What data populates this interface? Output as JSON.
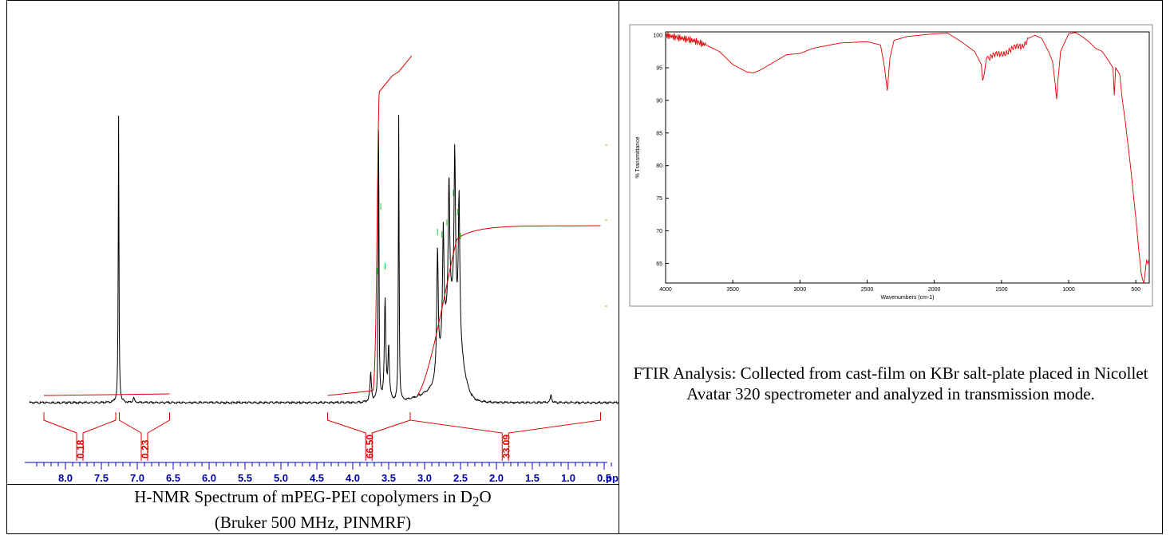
{
  "chart_data": [
    {
      "type": "line",
      "name_hint": "nmr",
      "xlabel": "ppm",
      "x_reversed": true,
      "xlim": [
        8.5,
        0.3
      ],
      "x_ticks": [
        "8.0",
        "7.5",
        "7.0",
        "6.5",
        "6.0",
        "5.5",
        "5.0",
        "4.5",
        "4.0",
        "3.5",
        "3.0",
        "2.5",
        "2.0",
        "1.5",
        "1.0",
        "0.5"
      ],
      "x_tick_values": [
        8.0,
        7.5,
        7.0,
        6.5,
        6.0,
        5.5,
        5.0,
        4.5,
        4.0,
        3.5,
        3.0,
        2.5,
        2.0,
        1.5,
        1.0,
        0.5
      ],
      "peaks": [
        {
          "ppm": 7.26,
          "height": 1.2
        },
        {
          "ppm": 7.05,
          "height": 0.02
        },
        {
          "ppm": 3.64,
          "height": 1.2
        },
        {
          "ppm": 3.36,
          "height": 1.2
        },
        {
          "ppm": 3.55,
          "height": 0.42
        },
        {
          "ppm": 3.5,
          "height": 0.22
        },
        {
          "ppm": 3.75,
          "height": 0.12
        },
        {
          "ppm": 2.82,
          "height": 0.52
        },
        {
          "ppm": 2.74,
          "height": 0.48
        },
        {
          "ppm": 2.66,
          "height": 0.56
        },
        {
          "ppm": 2.58,
          "height": 0.68
        },
        {
          "ppm": 2.52,
          "height": 0.6
        },
        {
          "ppm": 1.24,
          "height": 0.03
        }
      ],
      "integrals": [
        {
          "from": 8.3,
          "to": 7.3,
          "label": "0.18"
        },
        {
          "from": 7.25,
          "to": 6.55,
          "label": "0.23"
        },
        {
          "from": 4.35,
          "to": 3.2,
          "label": "66.50"
        },
        {
          "from": 3.2,
          "to": 0.55,
          "label": "33.09"
        }
      ],
      "caption_line1": "H-NMR Spectrum of mPEG-PEI copolymers in D",
      "caption_sub": "2",
      "caption_line1_end": "O",
      "caption_line2": "(Bruker 500 MHz, PINMRF)"
    },
    {
      "type": "line",
      "name_hint": "ftir",
      "xlabel": "Wavenumbers (cm-1)",
      "ylabel": "% Transmittance",
      "x_reversed": true,
      "xlim": [
        4000,
        400
      ],
      "ylim": [
        62,
        100.5
      ],
      "x_ticks": [
        "4000",
        "3500",
        "3000",
        "2500",
        "2000",
        "1500",
        "1000",
        "500"
      ],
      "x_tick_values": [
        4000,
        3500,
        3000,
        2500,
        2000,
        1500,
        1000,
        500
      ],
      "y_ticks": [
        "65",
        "70",
        "75",
        "80",
        "85",
        "90",
        "95",
        "100"
      ],
      "y_tick_values": [
        65,
        70,
        75,
        80,
        85,
        90,
        95,
        100
      ],
      "x": [
        4000,
        3900,
        3800,
        3700,
        3600,
        3500,
        3400,
        3350,
        3300,
        3200,
        3100,
        3000,
        2900,
        2800,
        2700,
        2500,
        2400,
        2370,
        2350,
        2330,
        2300,
        2200,
        2000,
        1900,
        1800,
        1700,
        1650,
        1640,
        1620,
        1600,
        1550,
        1500,
        1450,
        1400,
        1350,
        1300,
        1250,
        1200,
        1150,
        1120,
        1100,
        1090,
        1080,
        1060,
        1000,
        950,
        900,
        850,
        800,
        750,
        700,
        670,
        660,
        650,
        620,
        600,
        580,
        560,
        540,
        520,
        500,
        480,
        460,
        440,
        430,
        420,
        410,
        400
      ],
      "y": [
        100,
        99.6,
        99.2,
        98.5,
        97.5,
        95.5,
        94.4,
        94.2,
        94.6,
        95.8,
        97.0,
        97.2,
        98.0,
        98.4,
        98.8,
        99.0,
        98.5,
        95,
        91.5,
        96.5,
        99.2,
        99.8,
        100.2,
        100.3,
        99.0,
        97.5,
        95.5,
        93.2,
        95.5,
        96.5,
        96.8,
        97.2,
        97.6,
        98.0,
        98.3,
        99.5,
        100,
        99.5,
        97.5,
        96,
        92.5,
        90.2,
        93,
        97.5,
        100.2,
        100.4,
        99.8,
        99.0,
        98.0,
        97.5,
        96.0,
        95.0,
        90.8,
        95.0,
        94.0,
        90.0,
        87.0,
        83.5,
        80.0,
        76.0,
        72.0,
        67.5,
        63.5,
        61.8,
        63.8,
        65.5,
        65.0,
        65.8
      ]
    }
  ],
  "ftir_caption": "FTIR Analysis: Collected from cast-film on KBr salt-plate placed in Nicollet Avatar 320 spectrometer and analyzed in transmission mode."
}
